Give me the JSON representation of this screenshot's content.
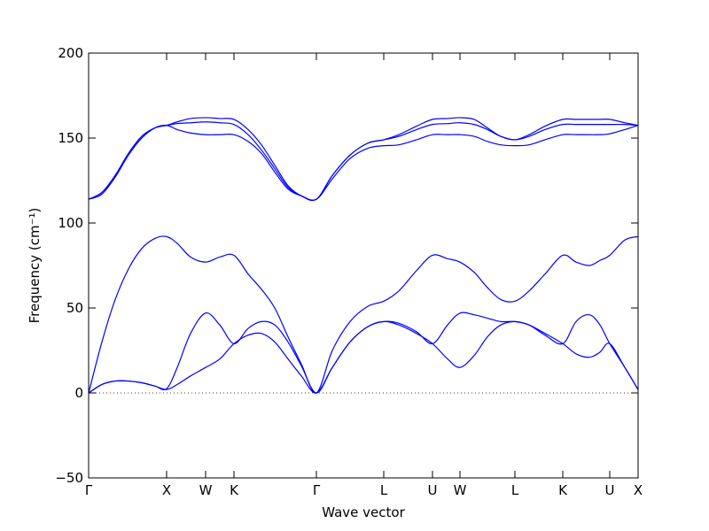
{
  "chart_data": {
    "type": "line",
    "xlabel": "Wave vector",
    "ylabel": "Frequency (cm⁻¹)",
    "x": [
      0,
      0.15,
      0.3,
      0.45,
      0.6,
      0.75,
      0.88,
      1.0,
      1.15,
      1.32,
      1.48,
      1.64,
      1.8,
      1.95,
      2.1,
      2.25,
      2.4,
      2.57,
      2.75,
      2.95,
      3.15,
      3.33,
      3.5,
      3.7,
      3.88,
      4.05,
      4.19,
      4.35,
      4.5,
      4.65,
      4.81,
      4.97,
      5.15,
      5.35,
      5.5,
      5.65,
      5.77,
      5.88,
      6.05,
      6.2
    ],
    "series": [
      {
        "color": "#0000ff",
        "values": [
          0,
          5,
          7,
          7,
          6,
          4,
          2,
          5,
          10,
          15,
          20,
          29,
          34,
          35,
          30,
          20,
          10,
          0,
          15,
          30,
          39,
          42,
          40,
          35,
          29,
          20,
          15,
          22,
          33,
          40,
          42,
          40,
          35,
          29,
          23,
          21,
          24,
          29,
          15,
          2
        ]
      },
      {
        "color": "#0000ff",
        "values": [
          0,
          5,
          7,
          7,
          6,
          4,
          2.5,
          15,
          35,
          47,
          40,
          29,
          38,
          42,
          40,
          30,
          16,
          0,
          15,
          30,
          39,
          42,
          41,
          36,
          29,
          40,
          47,
          46,
          44,
          42,
          42,
          40,
          34,
          29,
          42,
          46,
          40,
          29,
          15,
          2
        ]
      },
      {
        "color": "#0000ff",
        "values": [
          0,
          30,
          55,
          73,
          85,
          91,
          92,
          88,
          80,
          77,
          80,
          81,
          70,
          61,
          50,
          33,
          17,
          0,
          25,
          42,
          51,
          54,
          60,
          72,
          81,
          79,
          77,
          71,
          62,
          55,
          54,
          60,
          70,
          81,
          77,
          75,
          78,
          81,
          90,
          92
        ]
      },
      {
        "color": "#0000ff",
        "values": [
          114,
          117,
          127,
          140,
          150,
          156,
          157.5,
          155,
          153,
          152,
          152,
          152,
          148,
          141,
          130,
          120,
          116,
          114,
          126,
          138,
          144,
          145.5,
          146,
          149,
          152,
          152,
          152,
          151,
          148,
          146,
          145.5,
          146,
          149,
          152,
          152,
          152,
          152,
          152.5,
          155,
          157.5
        ]
      },
      {
        "color": "#0000ff",
        "values": [
          114,
          118,
          128,
          141,
          151,
          156,
          157.5,
          158.5,
          159,
          159.5,
          159,
          158,
          152,
          143,
          132,
          121,
          116,
          114,
          128,
          140,
          147,
          149,
          151,
          155,
          158,
          158.5,
          159,
          158,
          155,
          151,
          149,
          151,
          155,
          158,
          158,
          158,
          158,
          158,
          158,
          157.5
        ]
      },
      {
        "color": "#0000ff",
        "values": [
          114,
          118,
          128,
          141,
          151,
          156,
          157.5,
          159.5,
          161.5,
          162,
          161.5,
          161,
          155,
          146,
          134,
          122,
          116,
          114,
          128,
          140,
          147,
          149,
          152,
          157,
          161,
          161.5,
          162,
          161,
          156,
          151,
          149,
          152,
          157,
          161,
          161,
          161,
          161,
          161,
          159,
          157.5
        ]
      }
    ],
    "zero_line": 0,
    "xlim": [
      0,
      6.2
    ],
    "xticks": [
      {
        "value": 0,
        "label": "Γ"
      },
      {
        "value": 0.88,
        "label": "X"
      },
      {
        "value": 1.32,
        "label": "W"
      },
      {
        "value": 1.64,
        "label": "K"
      },
      {
        "value": 2.57,
        "label": "Γ"
      },
      {
        "value": 3.33,
        "label": "L"
      },
      {
        "value": 3.88,
        "label": "U"
      },
      {
        "value": 4.19,
        "label": "W"
      },
      {
        "value": 4.81,
        "label": "L"
      },
      {
        "value": 5.35,
        "label": "K"
      },
      {
        "value": 5.88,
        "label": "U"
      },
      {
        "value": 6.2,
        "label": "X"
      }
    ],
    "ylim": [
      -50,
      200
    ],
    "yticks": [
      {
        "value": -50,
        "label": "−50"
      },
      0,
      50,
      100,
      150,
      200
    ]
  }
}
